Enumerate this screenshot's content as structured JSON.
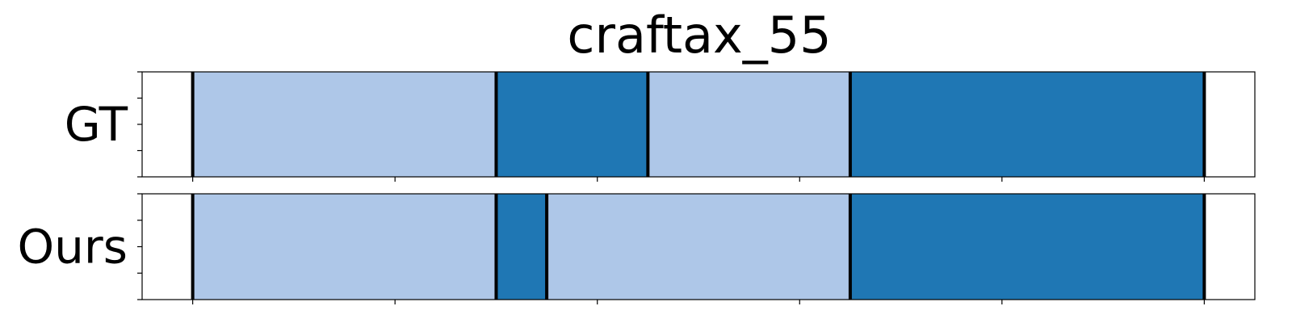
{
  "chart_data": {
    "type": "bar",
    "title": "craftax_55",
    "xlim": [
      -0.05,
      1.05
    ],
    "rows": [
      {
        "label": "GT",
        "segments": [
          {
            "start": 0.0,
            "end": 0.3,
            "color": "#aec7e8"
          },
          {
            "start": 0.3,
            "end": 0.45,
            "color": "#1f77b4"
          },
          {
            "start": 0.45,
            "end": 0.65,
            "color": "#aec7e8"
          },
          {
            "start": 0.65,
            "end": 1.0,
            "color": "#1f77b4"
          }
        ],
        "boundaries": [
          0.0,
          0.3,
          0.45,
          0.65,
          1.0
        ]
      },
      {
        "label": "Ours",
        "segments": [
          {
            "start": 0.0,
            "end": 0.3,
            "color": "#aec7e8"
          },
          {
            "start": 0.3,
            "end": 0.35,
            "color": "#1f77b4"
          },
          {
            "start": 0.35,
            "end": 0.65,
            "color": "#aec7e8"
          },
          {
            "start": 0.65,
            "end": 1.0,
            "color": "#1f77b4"
          }
        ],
        "boundaries": [
          0.0,
          0.3,
          0.35,
          0.65,
          1.0
        ]
      }
    ],
    "x_ticks": [
      0.0,
      0.2,
      0.4,
      0.6,
      0.8,
      1.0
    ],
    "x_tick_labels_visible": false,
    "y_tick_labels_visible": false,
    "grid": false,
    "legend": "none"
  }
}
